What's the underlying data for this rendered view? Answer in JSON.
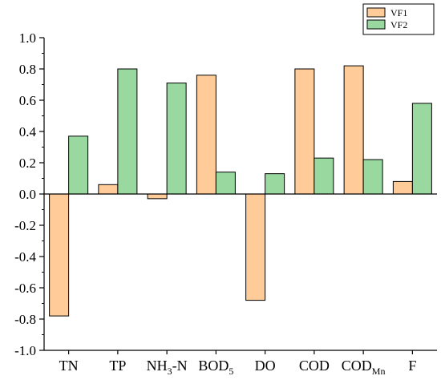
{
  "chart_data": {
    "type": "bar",
    "categories": [
      {
        "main": "TN",
        "sub": ""
      },
      {
        "main": "TP",
        "sub": ""
      },
      {
        "main": "NH",
        "sub": "3",
        "rest": "-N"
      },
      {
        "main": "BOD",
        "sub": "5"
      },
      {
        "main": "DO",
        "sub": ""
      },
      {
        "main": "COD",
        "sub": ""
      },
      {
        "main": "COD",
        "sub": "Mn"
      },
      {
        "main": "F",
        "sub": ""
      }
    ],
    "series": [
      {
        "name": "VF1",
        "color": "#FFCC99",
        "values": [
          -0.78,
          0.06,
          -0.03,
          0.76,
          -0.68,
          0.8,
          0.82,
          0.08
        ]
      },
      {
        "name": "VF2",
        "color": "#99D9A0",
        "values": [
          0.37,
          0.8,
          0.71,
          0.14,
          0.13,
          0.23,
          0.22,
          0.58
        ]
      }
    ],
    "ylim": [
      -1.0,
      1.0
    ],
    "yticks": [
      "1.0",
      "0.8",
      "0.6",
      "0.4",
      "0.2",
      "0.0",
      "-0.2",
      "-0.4",
      "-0.6",
      "-0.8",
      "-1.0"
    ],
    "legend_position": "top-right",
    "title": "",
    "xlabel": "",
    "ylabel": ""
  }
}
